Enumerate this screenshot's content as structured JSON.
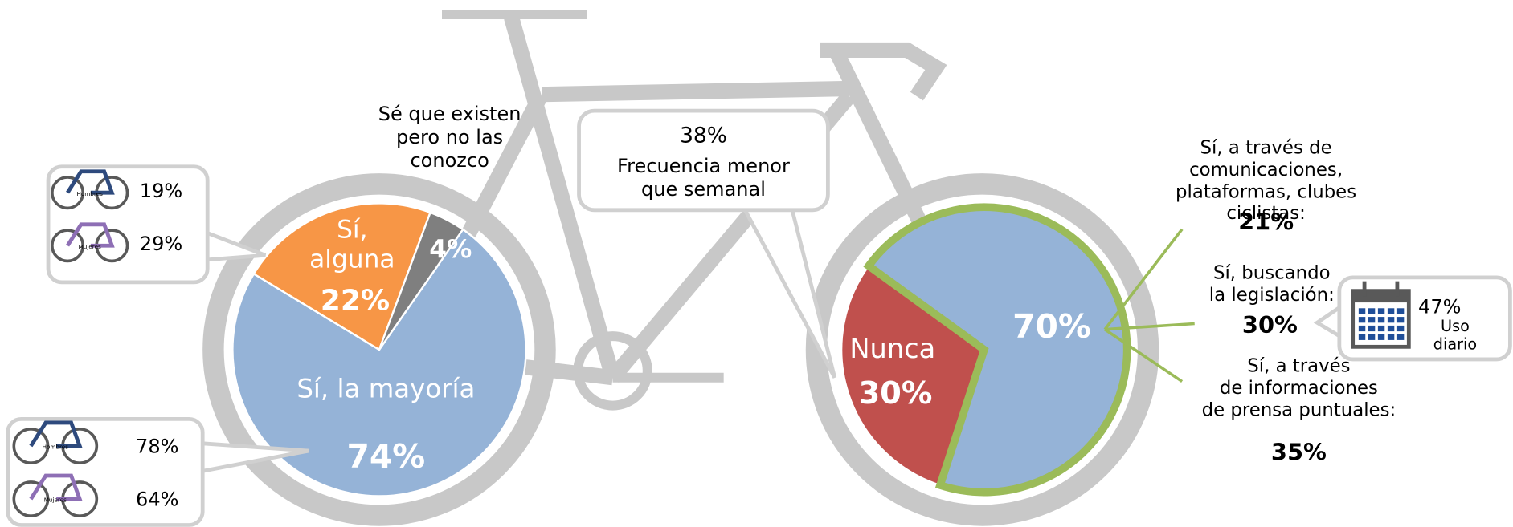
{
  "chart_data": [
    {
      "type": "pie",
      "categories": [
        "Sí, la mayoría",
        "Sí,\nalguna",
        "Sé que existen\npero no las\nconozco"
      ],
      "values": [
        74,
        22,
        4
      ],
      "value_labels": [
        "74%",
        "22%",
        "4%"
      ],
      "colors": [
        "#95b3d7",
        "#f79646",
        "#7f7f7f"
      ]
    },
    {
      "type": "pie",
      "categories": [
        "Nunca",
        null
      ],
      "values": [
        30,
        70
      ],
      "value_labels": [
        "30%",
        "70%"
      ],
      "colors": [
        "#c0504d",
        "#95b3d7"
      ]
    }
  ],
  "breakdowns": [
    {
      "labels": [
        "Hombres",
        "Mujeres"
      ],
      "value_labels": [
        "19%",
        "29%"
      ]
    },
    {
      "labels": [
        "Hombres",
        "Mujeres"
      ],
      "value_labels": [
        "78%",
        "64%"
      ]
    }
  ],
  "frequency_note": {
    "value_label": "38%",
    "text": "Frecuencia menor\nque semanal"
  },
  "channels": [
    {
      "text": "Sí, a través de comunicaciones,\nplataformas, clubes ciclistas:",
      "value_label": "21%"
    },
    {
      "text": "Sí, buscando\nla legislación:",
      "value_label": "30%"
    },
    {
      "text": "Sí, a través\nde informaciones\nde prensa puntuales:",
      "value_label": "35%"
    }
  ],
  "daily_use": {
    "value_label": "47%",
    "text": "Uso diario"
  }
}
